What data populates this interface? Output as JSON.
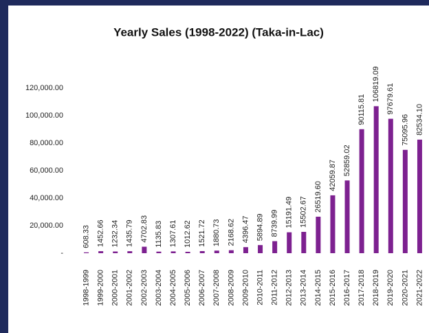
{
  "chart_data": {
    "type": "bar",
    "title": "Yearly Sales (1998-2022) (Taka-in-Lac)",
    "categories": [
      "1998-1999",
      "1999-2000",
      "2000-2001",
      "2001-2002",
      "2002-2003",
      "2003-2004",
      "2004-2005",
      "2005-2006",
      "2006-2007",
      "2007-2008",
      "2008-2009",
      "2009-2010",
      "2010-2011",
      "2011-2012",
      "2012-2013",
      "2013-2014",
      "2014-2015",
      "2015-2016",
      "2016-2017",
      "2017-2018",
      "2018-2019",
      "2019-2020",
      "2020-2021",
      "2021-2022"
    ],
    "values": [
      608.33,
      1452.66,
      1232.34,
      1435.79,
      4702.83,
      1135.83,
      1307.61,
      1012.62,
      1521.72,
      1880.73,
      2168.62,
      4396.47,
      5894.89,
      8739.99,
      15191.49,
      15502.67,
      26519.6,
      42059.87,
      52859.02,
      90115.81,
      106819.09,
      97679.61,
      75095.96,
      82534.1
    ],
    "value_labels": [
      "608.33",
      "1452.66",
      "1232.34",
      "1435.79",
      "4702.83",
      "1135.83",
      "1307.61",
      "1012.62",
      "1521.72",
      "1880.73",
      "2168.62",
      "4396.47",
      "5894.89",
      "8739.99",
      "15191.49",
      "15502.67",
      "26519.60",
      "42059.87",
      "52859.02",
      "90115.81",
      "106819.09",
      "97679.61",
      "75095.96",
      "82534.10"
    ],
    "color": "#7d2190",
    "ylim": [
      0,
      140000
    ],
    "yticks": [
      {
        "value": 0,
        "label": "-"
      },
      {
        "value": 20000,
        "label": "20,000.00"
      },
      {
        "value": 40000,
        "label": "40,000.00"
      },
      {
        "value": 60000,
        "label": "60,000.00"
      },
      {
        "value": 80000,
        "label": "80,000.00"
      },
      {
        "value": 100000,
        "label": "100,000.00"
      },
      {
        "value": 120000,
        "label": "120,000.00"
      }
    ],
    "grid": false
  }
}
